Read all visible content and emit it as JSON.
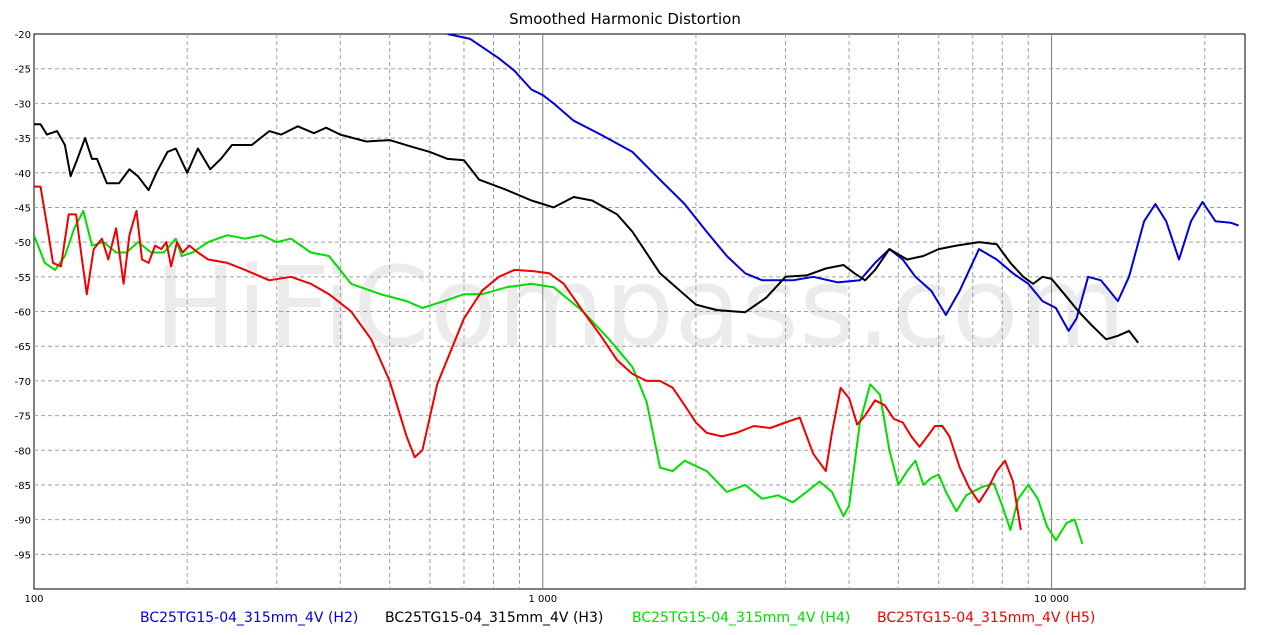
{
  "chart_data": {
    "type": "line",
    "title": "Smoothed Harmonic Distortion",
    "watermark": "HiFiCompass.com",
    "x_scale": "log",
    "xlim": [
      100,
      24000
    ],
    "ylim": [
      -100,
      -20
    ],
    "x_tick_labels": [
      {
        "value": 100,
        "label": "100"
      },
      {
        "value": 1000,
        "label": "1 000"
      },
      {
        "value": 10000,
        "label": "10 000"
      }
    ],
    "y_ticks": [
      -20,
      -25,
      -30,
      -35,
      -40,
      -45,
      -50,
      -55,
      -60,
      -65,
      -70,
      -75,
      -80,
      -85,
      -90,
      -95
    ],
    "grid": true,
    "legend_position": "bottom",
    "series": [
      {
        "name": "BC25TG15-04_315mm_4V (H2)",
        "color": "#0000dd",
        "points": [
          [
            650,
            -20
          ],
          [
            720,
            -20.7
          ],
          [
            820,
            -23.5
          ],
          [
            880,
            -25.3
          ],
          [
            950,
            -28
          ],
          [
            1000,
            -28.8
          ],
          [
            1050,
            -30
          ],
          [
            1150,
            -32.5
          ],
          [
            1300,
            -34.5
          ],
          [
            1500,
            -37
          ],
          [
            1700,
            -41
          ],
          [
            1900,
            -44.5
          ],
          [
            2100,
            -48.5
          ],
          [
            2300,
            -52
          ],
          [
            2500,
            -54.5
          ],
          [
            2700,
            -55.5
          ],
          [
            3100,
            -55.5
          ],
          [
            3400,
            -55
          ],
          [
            3800,
            -55.8
          ],
          [
            4200,
            -55.5
          ],
          [
            4500,
            -53
          ],
          [
            4800,
            -51
          ],
          [
            5100,
            -52.5
          ],
          [
            5400,
            -55
          ],
          [
            5800,
            -57
          ],
          [
            6200,
            -60.5
          ],
          [
            6600,
            -57
          ],
          [
            7200,
            -51
          ],
          [
            7800,
            -52.5
          ],
          [
            8400,
            -54.5
          ],
          [
            9000,
            -56
          ],
          [
            9600,
            -58.5
          ],
          [
            10200,
            -59.5
          ],
          [
            10800,
            -62.8
          ],
          [
            11200,
            -61
          ],
          [
            11800,
            -55
          ],
          [
            12500,
            -55.5
          ],
          [
            13500,
            -58.5
          ],
          [
            14200,
            -55
          ],
          [
            15200,
            -47
          ],
          [
            16000,
            -44.5
          ],
          [
            16800,
            -47
          ],
          [
            17800,
            -52.5
          ],
          [
            18800,
            -47
          ],
          [
            19800,
            -44.2
          ],
          [
            21000,
            -47
          ],
          [
            22500,
            -47.2
          ],
          [
            23300,
            -47.6
          ]
        ]
      },
      {
        "name": "BC25TG15-04_315mm_4V (H3)",
        "color": "#000000",
        "points": [
          [
            100,
            -33
          ],
          [
            103,
            -33
          ],
          [
            106,
            -34.5
          ],
          [
            111,
            -34
          ],
          [
            115,
            -36
          ],
          [
            118,
            -40.5
          ],
          [
            121,
            -38.5
          ],
          [
            126,
            -35
          ],
          [
            130,
            -38
          ],
          [
            133,
            -38
          ],
          [
            139,
            -41.5
          ],
          [
            147,
            -41.5
          ],
          [
            154,
            -39.5
          ],
          [
            160,
            -40.5
          ],
          [
            168,
            -42.5
          ],
          [
            174,
            -40
          ],
          [
            183,
            -37
          ],
          [
            190,
            -36.5
          ],
          [
            200,
            -40
          ],
          [
            210,
            -36.5
          ],
          [
            222,
            -39.5
          ],
          [
            233,
            -38
          ],
          [
            245,
            -36
          ],
          [
            268,
            -36
          ],
          [
            290,
            -34
          ],
          [
            306,
            -34.5
          ],
          [
            330,
            -33.3
          ],
          [
            355,
            -34.3
          ],
          [
            375,
            -33.5
          ],
          [
            400,
            -34.5
          ],
          [
            450,
            -35.5
          ],
          [
            500,
            -35.3
          ],
          [
            550,
            -36.2
          ],
          [
            600,
            -37
          ],
          [
            650,
            -38
          ],
          [
            700,
            -38.2
          ],
          [
            750,
            -41
          ],
          [
            850,
            -42.5
          ],
          [
            950,
            -44
          ],
          [
            1000,
            -44.5
          ],
          [
            1050,
            -45
          ],
          [
            1150,
            -43.5
          ],
          [
            1250,
            -44
          ],
          [
            1400,
            -46
          ],
          [
            1500,
            -48.5
          ],
          [
            1700,
            -54.5
          ],
          [
            2000,
            -59
          ],
          [
            2200,
            -59.8
          ],
          [
            2500,
            -60.1
          ],
          [
            2750,
            -58
          ],
          [
            3000,
            -55
          ],
          [
            3300,
            -54.8
          ],
          [
            3600,
            -53.8
          ],
          [
            3900,
            -53.3
          ],
          [
            4100,
            -54.5
          ],
          [
            4300,
            -55.5
          ],
          [
            4500,
            -54
          ],
          [
            4800,
            -51
          ],
          [
            5200,
            -52.5
          ],
          [
            5600,
            -52
          ],
          [
            6000,
            -51
          ],
          [
            6500,
            -50.5
          ],
          [
            7200,
            -50
          ],
          [
            7800,
            -50.3
          ],
          [
            8300,
            -53
          ],
          [
            8800,
            -55
          ],
          [
            9200,
            -56
          ],
          [
            9600,
            -55
          ],
          [
            10000,
            -55.3
          ],
          [
            10600,
            -57.5
          ],
          [
            11300,
            -60
          ],
          [
            12000,
            -62
          ],
          [
            12800,
            -64
          ],
          [
            13500,
            -63.5
          ],
          [
            14200,
            -62.8
          ],
          [
            14800,
            -64.5
          ]
        ]
      },
      {
        "name": "BC25TG15-04_315mm_4V (H4)",
        "color": "#00dd00",
        "points": [
          [
            100,
            -49
          ],
          [
            105,
            -53
          ],
          [
            110,
            -54
          ],
          [
            115,
            -52
          ],
          [
            120,
            -48
          ],
          [
            125,
            -45.5
          ],
          [
            130,
            -50.5
          ],
          [
            137,
            -50
          ],
          [
            145,
            -51.5
          ],
          [
            152,
            -51.5
          ],
          [
            160,
            -50
          ],
          [
            170,
            -51.5
          ],
          [
            180,
            -51.5
          ],
          [
            190,
            -49.5
          ],
          [
            195,
            -52
          ],
          [
            205,
            -51.5
          ],
          [
            220,
            -50
          ],
          [
            240,
            -49
          ],
          [
            260,
            -49.5
          ],
          [
            280,
            -49
          ],
          [
            300,
            -50
          ],
          [
            320,
            -49.5
          ],
          [
            350,
            -51.5
          ],
          [
            380,
            -52
          ],
          [
            420,
            -56
          ],
          [
            480,
            -57.5
          ],
          [
            540,
            -58.5
          ],
          [
            580,
            -59.5
          ],
          [
            640,
            -58.5
          ],
          [
            700,
            -57.5
          ],
          [
            760,
            -57.5
          ],
          [
            850,
            -56.5
          ],
          [
            950,
            -56
          ],
          [
            1050,
            -56.5
          ],
          [
            1200,
            -60
          ],
          [
            1350,
            -64
          ],
          [
            1500,
            -68
          ],
          [
            1600,
            -73
          ],
          [
            1700,
            -82.5
          ],
          [
            1800,
            -83
          ],
          [
            1900,
            -81.5
          ],
          [
            2100,
            -83
          ],
          [
            2300,
            -86
          ],
          [
            2500,
            -85
          ],
          [
            2700,
            -87
          ],
          [
            2900,
            -86.5
          ],
          [
            3100,
            -87.5
          ],
          [
            3300,
            -86
          ],
          [
            3500,
            -84.5
          ],
          [
            3700,
            -86
          ],
          [
            3900,
            -89.5
          ],
          [
            4000,
            -88
          ],
          [
            4200,
            -76
          ],
          [
            4400,
            -70.5
          ],
          [
            4600,
            -72
          ],
          [
            4800,
            -80
          ],
          [
            5000,
            -85
          ],
          [
            5200,
            -83
          ],
          [
            5400,
            -81.5
          ],
          [
            5600,
            -85
          ],
          [
            5800,
            -84
          ],
          [
            6000,
            -83.5
          ],
          [
            6200,
            -86
          ],
          [
            6500,
            -88.8
          ],
          [
            6800,
            -86.5
          ],
          [
            7300,
            -85.3
          ],
          [
            7700,
            -84.8
          ],
          [
            8000,
            -88
          ],
          [
            8300,
            -91.5
          ],
          [
            8600,
            -87
          ],
          [
            9000,
            -85
          ],
          [
            9400,
            -87
          ],
          [
            9800,
            -91
          ],
          [
            10200,
            -93
          ],
          [
            10700,
            -90.5
          ],
          [
            11100,
            -90
          ],
          [
            11500,
            -93.5
          ]
        ]
      },
      {
        "name": "BC25TG15-04_315mm_4V (H5)",
        "color": "#ee0000",
        "points": [
          [
            100,
            -42
          ],
          [
            103,
            -42
          ],
          [
            106,
            -47.5
          ],
          [
            109,
            -53
          ],
          [
            113,
            -53.5
          ],
          [
            117,
            -46
          ],
          [
            121,
            -46
          ],
          [
            124,
            -52
          ],
          [
            127,
            -57.5
          ],
          [
            131,
            -51
          ],
          [
            136,
            -49.5
          ],
          [
            140,
            -52.5
          ],
          [
            145,
            -48
          ],
          [
            150,
            -56
          ],
          [
            154,
            -49
          ],
          [
            159,
            -45.5
          ],
          [
            163,
            -52.5
          ],
          [
            168,
            -53
          ],
          [
            173,
            -50.5
          ],
          [
            178,
            -51
          ],
          [
            182,
            -50
          ],
          [
            186,
            -53.5
          ],
          [
            191,
            -50
          ],
          [
            196,
            -51.5
          ],
          [
            202,
            -50.5
          ],
          [
            210,
            -51.5
          ],
          [
            220,
            -52.5
          ],
          [
            240,
            -53
          ],
          [
            260,
            -54
          ],
          [
            290,
            -55.5
          ],
          [
            320,
            -55
          ],
          [
            350,
            -56
          ],
          [
            380,
            -57.5
          ],
          [
            420,
            -60
          ],
          [
            460,
            -64
          ],
          [
            500,
            -70
          ],
          [
            540,
            -78
          ],
          [
            560,
            -81
          ],
          [
            580,
            -80
          ],
          [
            620,
            -70.5
          ],
          [
            700,
            -61
          ],
          [
            760,
            -57
          ],
          [
            820,
            -55
          ],
          [
            880,
            -54
          ],
          [
            960,
            -54.2
          ],
          [
            1030,
            -54.5
          ],
          [
            1100,
            -56
          ],
          [
            1200,
            -60
          ],
          [
            1300,
            -63.5
          ],
          [
            1400,
            -67
          ],
          [
            1500,
            -69
          ],
          [
            1600,
            -70
          ],
          [
            1700,
            -70
          ],
          [
            1800,
            -71
          ],
          [
            1900,
            -73.5
          ],
          [
            2000,
            -76
          ],
          [
            2100,
            -77.5
          ],
          [
            2250,
            -78
          ],
          [
            2400,
            -77.5
          ],
          [
            2600,
            -76.5
          ],
          [
            2800,
            -76.8
          ],
          [
            3000,
            -76
          ],
          [
            3200,
            -75.3
          ],
          [
            3400,
            -80.5
          ],
          [
            3600,
            -83
          ],
          [
            3700,
            -77.5
          ],
          [
            3850,
            -71
          ],
          [
            4000,
            -72.5
          ],
          [
            4150,
            -76.3
          ],
          [
            4300,
            -75
          ],
          [
            4500,
            -72.8
          ],
          [
            4700,
            -73.5
          ],
          [
            4900,
            -75.5
          ],
          [
            5100,
            -76
          ],
          [
            5300,
            -78
          ],
          [
            5500,
            -79.5
          ],
          [
            5700,
            -78
          ],
          [
            5900,
            -76.5
          ],
          [
            6100,
            -76.5
          ],
          [
            6300,
            -78
          ],
          [
            6600,
            -82.5
          ],
          [
            6900,
            -85.5
          ],
          [
            7200,
            -87.5
          ],
          [
            7500,
            -85.5
          ],
          [
            7800,
            -83
          ],
          [
            8100,
            -81.5
          ],
          [
            8400,
            -84.5
          ],
          [
            8700,
            -91.5
          ]
        ]
      }
    ]
  }
}
